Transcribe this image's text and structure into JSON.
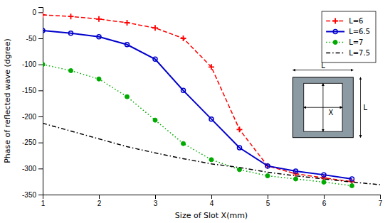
{
  "chart_data": {
    "type": "line",
    "xlabel": "Size of Slot X(mm)",
    "ylabel": "Phase of reflected wave (dgree)",
    "xlim": [
      1,
      7
    ],
    "ylim": [
      -350,
      10
    ],
    "xticks": [
      1,
      2,
      3,
      4,
      5,
      6,
      7
    ],
    "yticks": [
      0,
      -50,
      -100,
      -150,
      -200,
      -250,
      -300,
      -350
    ],
    "grid": false,
    "legend": "upper right",
    "annotations": [
      "X",
      "L",
      "L"
    ],
    "series": [
      {
        "name": "L=6",
        "color": "#FF0000",
        "line_style": "dashed",
        "marker": "plus",
        "x": [
          1.0,
          1.5,
          2.0,
          2.5,
          3.0,
          3.5,
          4.0,
          4.5,
          5.0,
          5.5,
          6.0,
          6.5
        ],
        "values": [
          -5,
          -8,
          -13,
          -20,
          -30,
          -50,
          -105,
          -225,
          -295,
          -310,
          -318,
          -325
        ]
      },
      {
        "name": "L=6.5",
        "color": "#0000CC",
        "line_style": "solid",
        "marker": "circle-open",
        "x": [
          1.0,
          1.5,
          2.0,
          2.5,
          3.0,
          3.5,
          4.0,
          4.5,
          5.0,
          5.5,
          6.0,
          6.5
        ],
        "values": [
          -35,
          -40,
          -47,
          -62,
          -90,
          -150,
          -205,
          -260,
          -295,
          -305,
          -312,
          -320
        ]
      },
      {
        "name": "L=7",
        "color": "#00AA00",
        "line_style": "dotted",
        "marker": "circle",
        "x": [
          1.0,
          1.5,
          2.0,
          2.5,
          3.0,
          3.5,
          4.0,
          4.5,
          5.0,
          5.5,
          6.0,
          6.5
        ],
        "values": [
          -100,
          -112,
          -128,
          -162,
          -207,
          -252,
          -283,
          -302,
          -314,
          -320,
          -326,
          -333
        ]
      },
      {
        "name": "L=7.5",
        "color": "#000000",
        "line_style": "dashdot",
        "marker": "none",
        "x": [
          1.0,
          1.5,
          2.0,
          2.5,
          3.0,
          3.5,
          4.0,
          4.5,
          5.0,
          5.5,
          6.0,
          6.5,
          7.0
        ],
        "values": [
          -213,
          -228,
          -243,
          -258,
          -270,
          -281,
          -291,
          -298,
          -307,
          -314,
          -320,
          -326,
          -331
        ]
      }
    ]
  }
}
